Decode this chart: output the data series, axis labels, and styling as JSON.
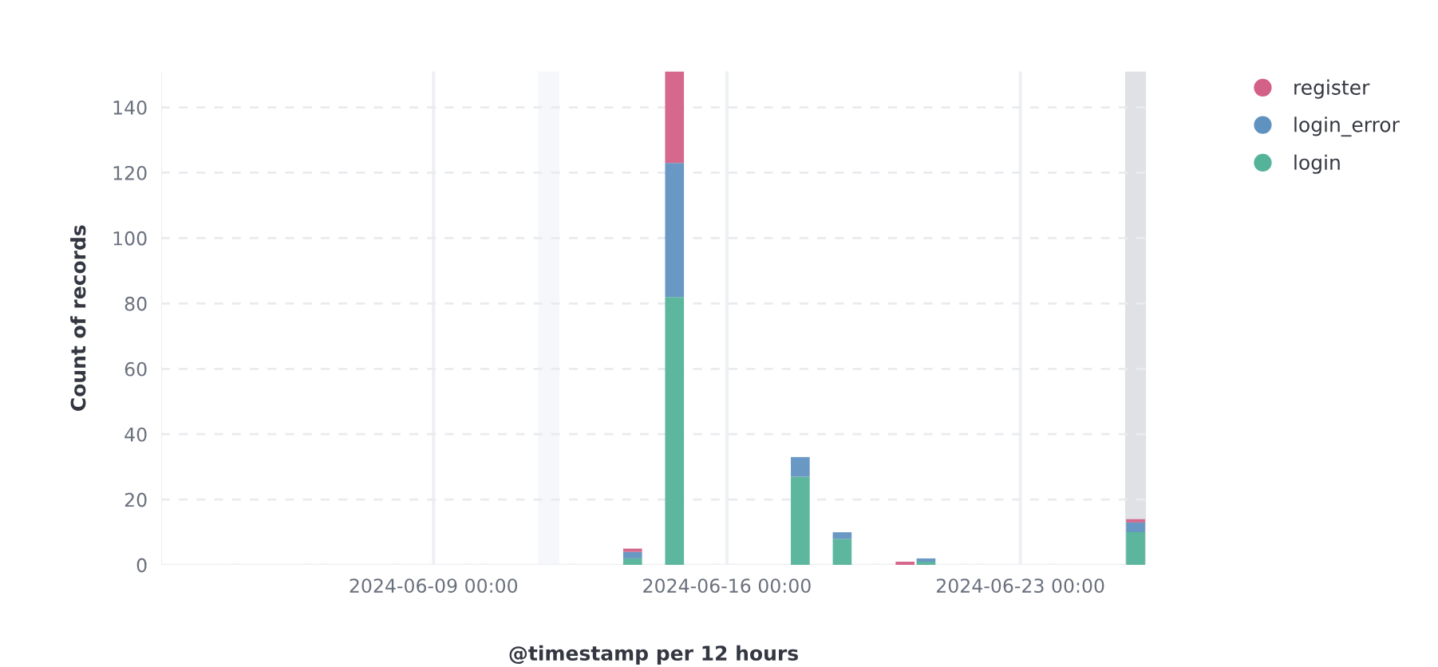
{
  "chart_data": {
    "type": "bar",
    "stacked": true,
    "xlabel": "@timestamp per 12 hours",
    "ylabel": "Count of records",
    "x": [
      "2024-06-13T18:00",
      "2024-06-14T18:00",
      "2024-06-17T18:00",
      "2024-06-18T18:00",
      "2024-06-20T06:00",
      "2024-06-20T18:00",
      "2024-06-25T18:00"
    ],
    "series": [
      {
        "name": "login",
        "color": "#54b399",
        "values": [
          2,
          82,
          27,
          8,
          null,
          1,
          10
        ]
      },
      {
        "name": "login_error",
        "color": "#6092c0",
        "values": [
          2,
          41,
          6,
          2,
          null,
          1,
          3
        ]
      },
      {
        "name": "register",
        "color": "#d36086",
        "values": [
          1,
          28,
          null,
          null,
          1,
          null,
          1
        ]
      }
    ],
    "xlim": [
      "2024-06-02T12:00",
      "2024-06-26T00:00"
    ],
    "xticks": [
      {
        "value": "2024-06-09T00:00",
        "label": "2024-06-09 00:00"
      },
      {
        "value": "2024-06-16T00:00",
        "label": "2024-06-16 00:00"
      },
      {
        "value": "2024-06-23T00:00",
        "label": "2024-06-23 00:00"
      }
    ],
    "ylim": [
      0,
      151
    ],
    "yticks": [
      0,
      20,
      40,
      60,
      80,
      100,
      120,
      140
    ],
    "bands": [
      {
        "axis": "x",
        "from": "2024-06-11T12:00",
        "to": "2024-06-12T00:00",
        "color": "#f5f7fa"
      },
      {
        "axis": "x",
        "from": "2024-06-25T12:00",
        "to": "2024-06-26T00:00",
        "color": "#dfe1e5"
      }
    ],
    "grid": true,
    "legend": "top right"
  }
}
